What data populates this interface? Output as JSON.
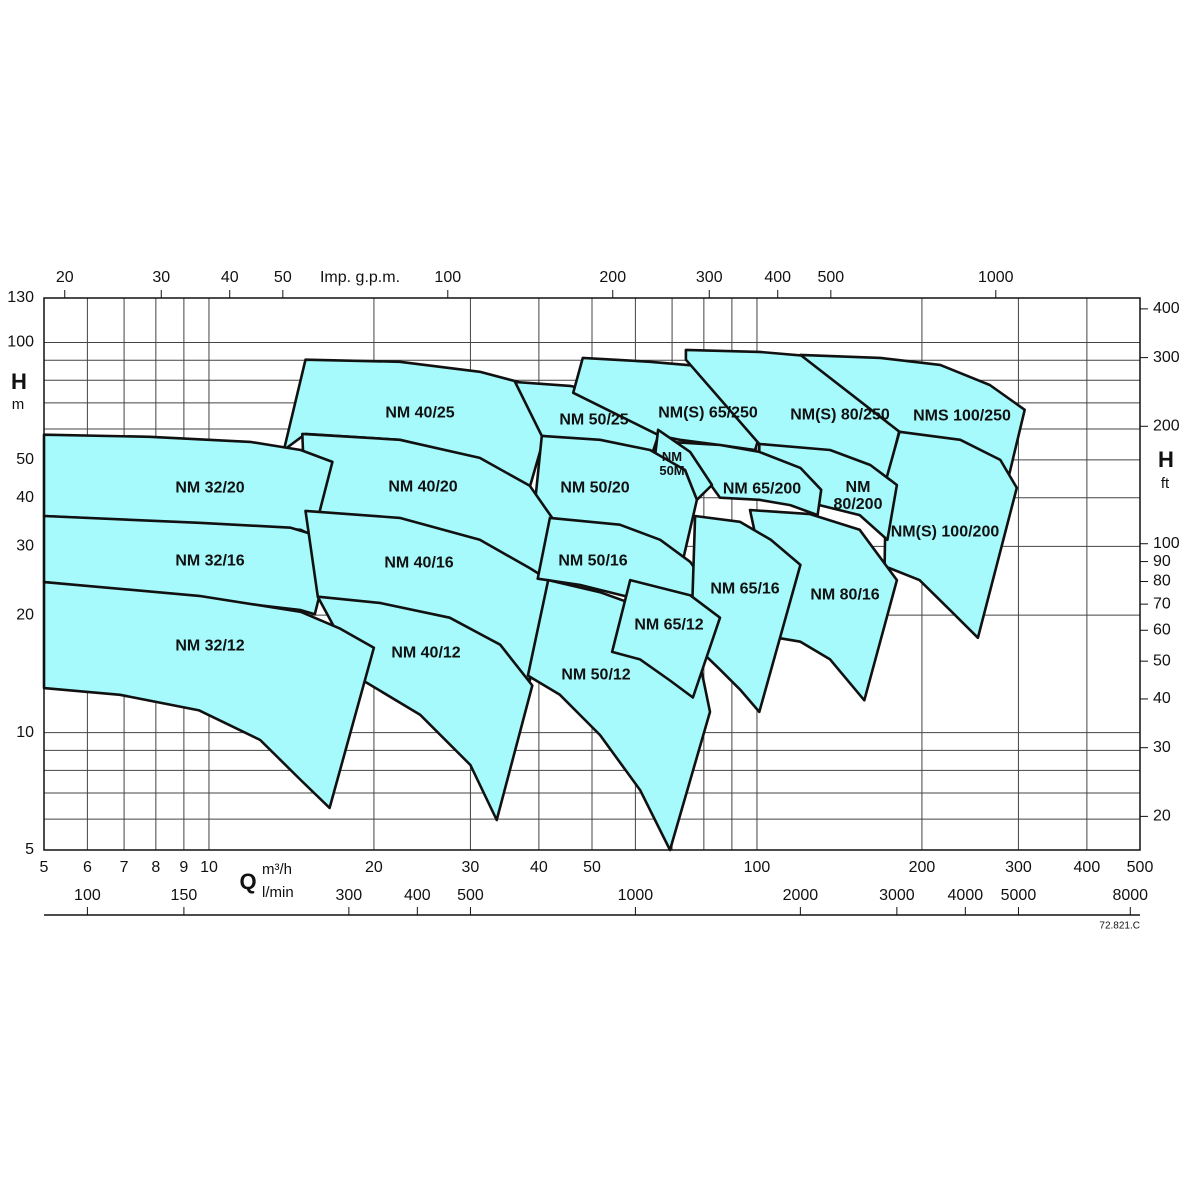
{
  "chart_data": {
    "type": "region",
    "y_label": "H",
    "y_unit": "m",
    "y2_label": "H",
    "y2_unit": "ft",
    "x_label": "Q",
    "x_unit": "m³/h",
    "x2_unit": "l/min",
    "x3_unit": "Imp. g.p.m.",
    "code": "72.821.C",
    "log_scale": true,
    "grid": true,
    "color": "#a6fafc",
    "line_color": "#111111",
    "xlim": [
      5,
      500
    ],
    "xticks": [
      5,
      6,
      7,
      8,
      9,
      10,
      20,
      30,
      40,
      50,
      100,
      200,
      300,
      400,
      500
    ],
    "xminor": [
      60,
      70,
      80,
      90
    ],
    "ylim": [
      5,
      130
    ],
    "yticks": [
      5,
      10,
      20,
      30,
      40,
      50,
      100,
      130
    ],
    "yminor": [
      6,
      7,
      8,
      9,
      60,
      70,
      80,
      90
    ],
    "y2lim": [
      16.4,
      426.5
    ],
    "y2ticks": [
      20,
      30,
      40,
      50,
      60,
      70,
      80,
      90,
      100,
      200,
      300,
      400
    ],
    "x2lim": [
      83.33,
      8333
    ],
    "x2ticks": [
      100,
      150,
      300,
      400,
      500,
      1000,
      2000,
      3000,
      4000,
      5000,
      8000
    ],
    "x3lim": [
      18.33,
      1833
    ],
    "x3ticks": [
      20,
      30,
      40,
      50,
      100,
      200,
      300,
      400,
      500,
      1000
    ],
    "series": [
      {
        "name": "NM 40/25",
        "x": [
          15,
          22.3,
          31.2,
          38.5,
          42.8,
          38.5,
          31.2,
          22.3,
          15,
          13.7
        ],
        "values": [
          90.3,
          89.2,
          84.1,
          77.8,
          71.2,
          42.6,
          50,
          56.3,
          58.3,
          53
        ]
      },
      {
        "name": "NM 50/25",
        "x": [
          36.2,
          45.6,
          56.2,
          65.2,
          67.1,
          63.8,
          56.2,
          47.5,
          40.5
        ],
        "values": [
          79.2,
          77.4,
          72.5,
          66.4,
          61.5,
          50,
          53.7,
          56.3,
          57.6
        ]
      },
      {
        "name": "NM(S) 65/250",
        "x": [
          48.1,
          63.8,
          85.6,
          101,
          108,
          99.2,
          85.6,
          72.3,
          66.6,
          46.2
        ],
        "values": [
          91.3,
          89.2,
          86.1,
          82.6,
          78.8,
          53,
          54.6,
          56.3,
          57.6,
          74.3
        ]
      },
      {
        "name": "NM(S) 80/250",
        "x": [
          74.2,
          101,
          136,
          168,
          192,
          173,
          154,
          130,
          101,
          74.2
        ],
        "values": [
          95.7,
          94.6,
          91.3,
          86.1,
          80.2,
          44.9,
          49.4,
          53,
          54.9,
          90.3
        ]
      },
      {
        "name": "NMS 100/250",
        "x": [
          120,
          168,
          216,
          266,
          308,
          287,
          266,
          235,
          207,
          182
        ],
        "values": [
          92.9,
          91.3,
          87.6,
          77.8,
          67.2,
          44.4,
          47.1,
          53,
          56.9,
          59
        ]
      },
      {
        "name": "NM(S) 100/200",
        "x": [
          182,
          235,
          278,
          298,
          253,
          225,
          198,
          171,
          172
        ],
        "values": [
          59,
          56.3,
          50,
          42.4,
          17.5,
          20.6,
          24.6,
          26.7,
          44.4
        ]
      },
      {
        "name": "NM 80/200",
        "x": [
          101,
          136,
          161,
          180,
          173,
          154,
          130,
          115,
          101
        ],
        "values": [
          54.9,
          53,
          48.5,
          43.1,
          31.2,
          36.1,
          38.3,
          39.5,
          41.9
        ]
      },
      {
        "name": "NM 65/200",
        "x": [
          69.4,
          85.6,
          101,
          120,
          131,
          129,
          115,
          101,
          85.6,
          78.7
        ],
        "values": [
          55.6,
          54.6,
          52.4,
          47.7,
          41.9,
          36.1,
          38.3,
          39.5,
          40,
          47.1
        ]
      },
      {
        "name": "NM 50M",
        "x": [
          66,
          75.5,
          82.8,
          77.7,
          73.9,
          65.2
        ],
        "values": [
          59.7,
          52.4,
          43.1,
          39.5,
          47.1,
          51.5
        ]
      },
      {
        "name": "NM 50/20",
        "x": [
          40.5,
          51.7,
          63.8,
          73.9,
          77.7,
          73.3,
          66.6,
          56.2,
          47.5,
          41.9,
          39.4
        ],
        "values": [
          57.6,
          56.3,
          53,
          47.1,
          39.5,
          27.7,
          29.7,
          32.7,
          34.7,
          35.5,
          39.5
        ]
      },
      {
        "name": "NM 40/20",
        "x": [
          14.8,
          22.3,
          31.2,
          38.5,
          42.3,
          40.2,
          37,
          27.5,
          20.5,
          15
        ],
        "values": [
          58.3,
          56.3,
          50.6,
          42.9,
          35.5,
          24.3,
          26.4,
          31.2,
          35.1,
          37
        ]
      },
      {
        "name": "NM 32/20",
        "x": [
          5,
          7.8,
          11.9,
          14.7,
          16.8,
          15.5,
          14.7,
          9.6,
          5
        ],
        "values": [
          58,
          57.3,
          55.6,
          53,
          49.4,
          31.9,
          33.1,
          34.3,
          35.9
        ]
      },
      {
        "name": "NM 32/16",
        "x": [
          5,
          9.6,
          14.1,
          15.6,
          16.8,
          15.6,
          14.7,
          9.6,
          5
        ],
        "values": [
          35.9,
          34.5,
          33.5,
          32.1,
          30.6,
          20.1,
          20.6,
          22.1,
          24.3
        ]
      },
      {
        "name": "NM 40/16",
        "x": [
          15,
          22.3,
          31.2,
          38.5,
          42.3,
          38.5,
          35.4,
          27.5,
          20.5,
          15.8
        ],
        "values": [
          37,
          35.5,
          31.2,
          26.4,
          24.3,
          13.6,
          14.9,
          17.3,
          20.6,
          22.3
        ]
      },
      {
        "name": "NM 50/16",
        "x": [
          41.9,
          56.2,
          66.6,
          75.5,
          82.1,
          76.1,
          61.2,
          47.5,
          39.8
        ],
        "values": [
          35.5,
          34.1,
          31.2,
          27.4,
          23.2,
          20.4,
          21.9,
          23.9,
          24.8
        ]
      },
      {
        "name": "NM 80/16",
        "x": [
          97.1,
          125,
          154,
          180,
          157,
          136,
          120,
          109
        ],
        "values": [
          37.2,
          36.3,
          33.1,
          24.6,
          12.1,
          15.4,
          17.1,
          17.5
        ]
      },
      {
        "name": "NM 65/16",
        "x": [
          77.1,
          93.1,
          106,
          120,
          101,
          93.1,
          85.6,
          80.4,
          76.1
        ],
        "values": [
          35.9,
          34.7,
          31.2,
          26.9,
          11.3,
          12.9,
          14.5,
          15.8,
          20.4
        ]
      },
      {
        "name": "NM 50/12",
        "x": [
          41.6,
          51.7,
          63.8,
          77.1,
          82.1,
          69.4,
          61.2,
          51.7,
          43.7,
          38.2
        ],
        "values": [
          24.6,
          22.9,
          20.6,
          17.3,
          11.3,
          5,
          7.12,
          9.86,
          12.5,
          14
        ]
      },
      {
        "name": "NM 65/12",
        "x": [
          58.7,
          75.5,
          85.6,
          76.4,
          69.4,
          61.2,
          54.4
        ],
        "values": [
          24.6,
          22.5,
          19.7,
          12.3,
          13.6,
          15.4,
          16.1
        ]
      },
      {
        "name": "NM 40/12",
        "x": [
          15.8,
          20.5,
          27.5,
          34,
          38.9,
          33.5,
          30,
          24.3,
          19.1
        ],
        "values": [
          22.3,
          21.5,
          19.7,
          16.8,
          13.2,
          5.97,
          8.26,
          11.1,
          13.6
        ]
      },
      {
        "name": "NM 32/12",
        "x": [
          5,
          9.6,
          14.7,
          17.3,
          20,
          16.6,
          14.7,
          12.4,
          9.6,
          6.88,
          5
        ],
        "values": [
          24.3,
          22.4,
          20.4,
          18.5,
          16.5,
          6.41,
          7.56,
          9.57,
          11.4,
          12.5,
          13
        ]
      }
    ]
  }
}
